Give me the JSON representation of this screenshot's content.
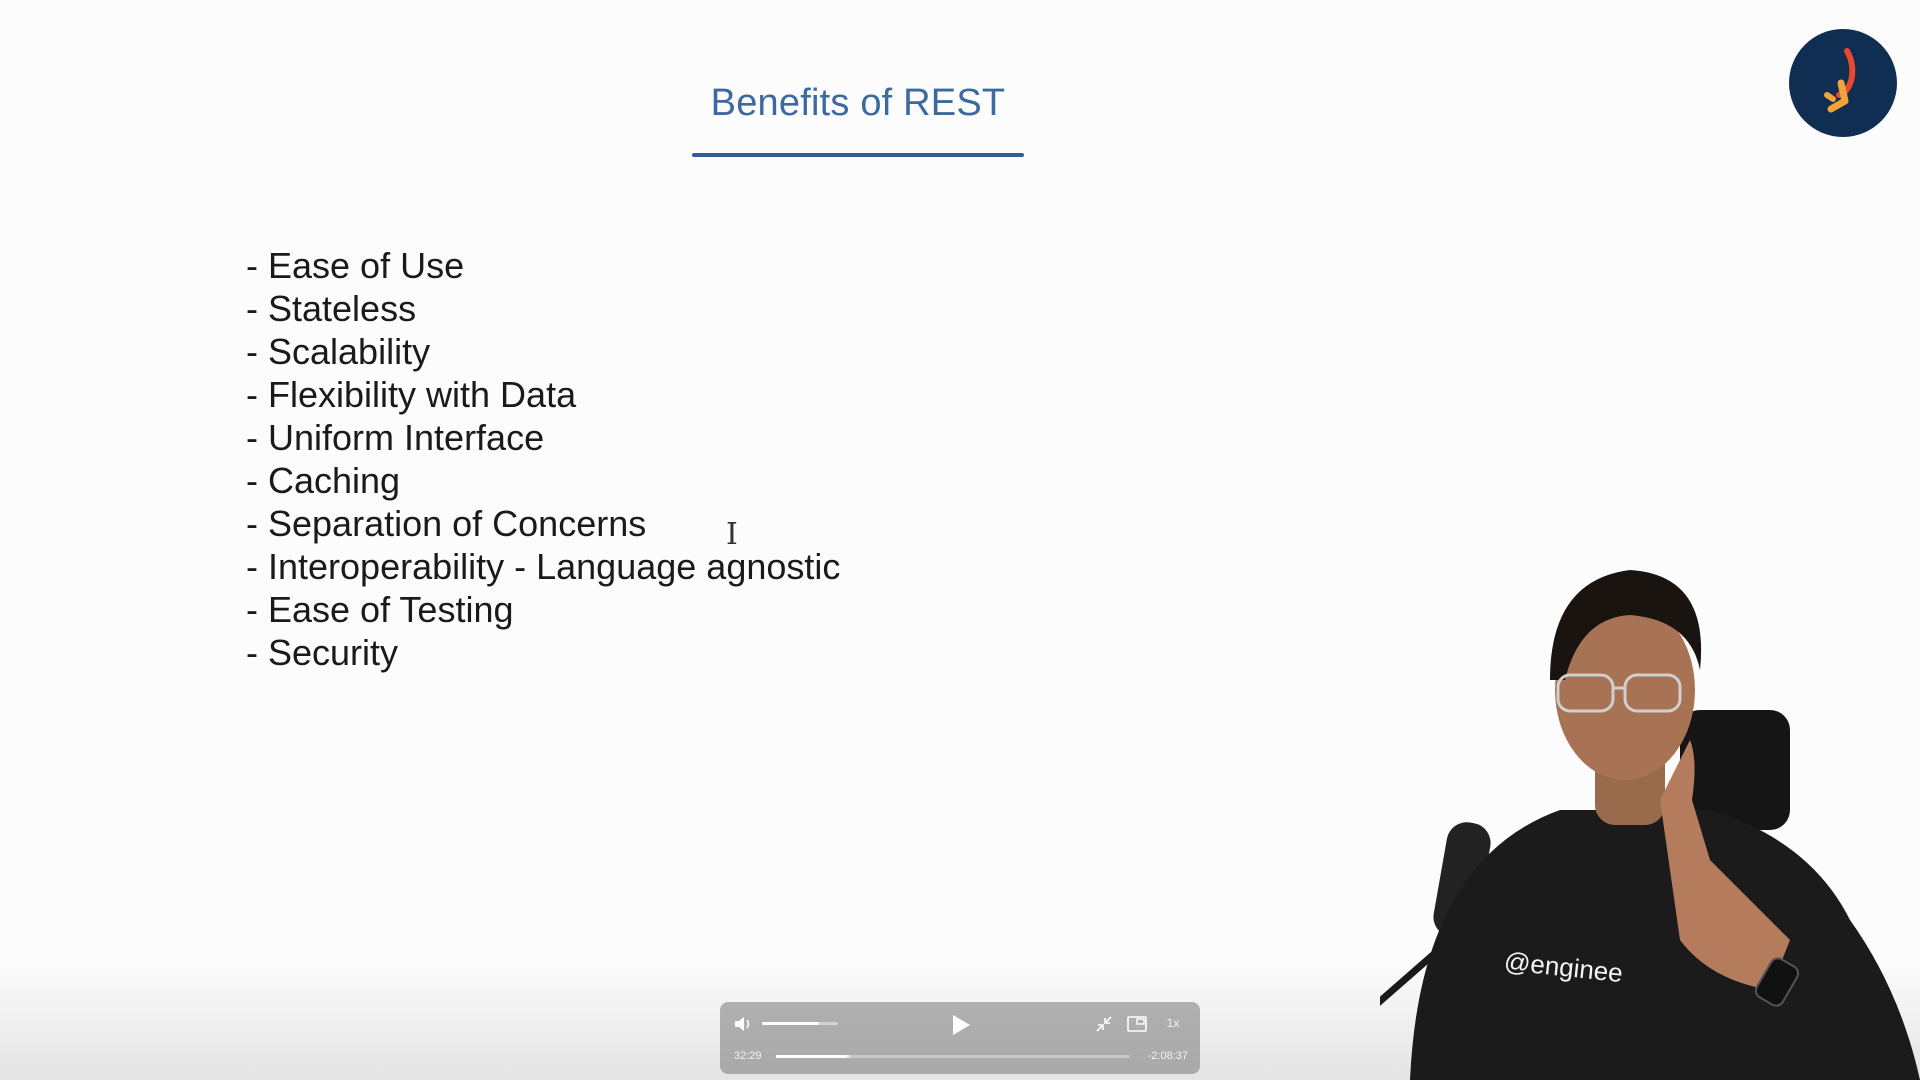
{
  "slide": {
    "title": "Benefits of REST",
    "bullet_prefix": "-",
    "bullets": [
      "Ease of Use",
      "Stateless",
      "Scalability",
      "Flexibility with Data",
      "Uniform Interface",
      "Caching",
      "Separation of Concerns",
      "Interoperability - Language agnostic",
      "Ease of Testing",
      "Security"
    ]
  },
  "cursor": "I",
  "logo": {
    "icon": "channel-logo-icon",
    "bg_color": "#0f2e52",
    "accent_color": "#f2a43a"
  },
  "presenter": {
    "shirt_text": "@enginee"
  },
  "player": {
    "icons": {
      "volume": "volume-icon",
      "play": "play-icon",
      "shrink": "exit-fullscreen-icon",
      "pip": "picture-in-picture-icon"
    },
    "volume_level": 0.75,
    "speed": "1x",
    "elapsed": "32:29",
    "remaining": "-2:08:37",
    "progress_fraction": 0.2,
    "buffered_fraction": 0.21
  }
}
